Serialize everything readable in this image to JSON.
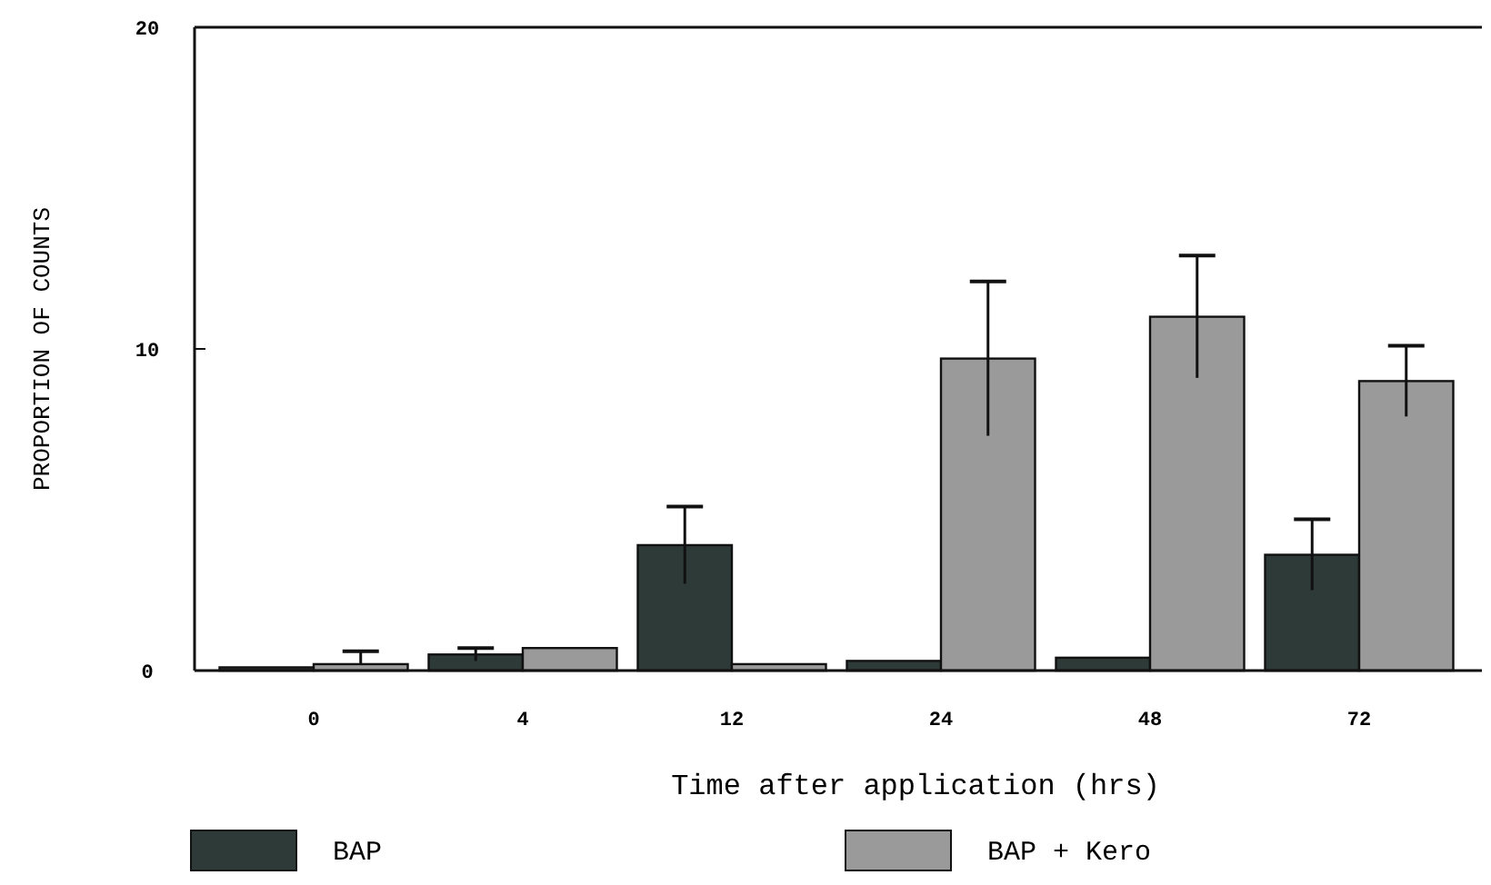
{
  "chart_data": {
    "type": "bar",
    "xlabel": "Time after application (hrs)",
    "ylabel": "PROPORTION OF COUNTS",
    "categories": [
      "0",
      "4",
      "12",
      "24",
      "48",
      "72"
    ],
    "series": [
      {
        "name": "BAP",
        "color": "#2e3a37",
        "values": [
          0.1,
          0.5,
          3.9,
          0.3,
          0.4,
          3.6
        ],
        "errors": [
          null,
          0.2,
          1.2,
          null,
          null,
          1.1
        ]
      },
      {
        "name": "BAP + Kero",
        "color": "#9a9a9a",
        "values": [
          0.2,
          0.7,
          0.2,
          9.7,
          11.0,
          9.0
        ],
        "errors": [
          [
            0.2,
            0.6
          ],
          null,
          null,
          2.4,
          1.9,
          1.1
        ]
      }
    ],
    "ylim": [
      0,
      20
    ],
    "yticks": [
      0,
      10,
      20
    ],
    "grid": false,
    "legend": "bottom"
  }
}
